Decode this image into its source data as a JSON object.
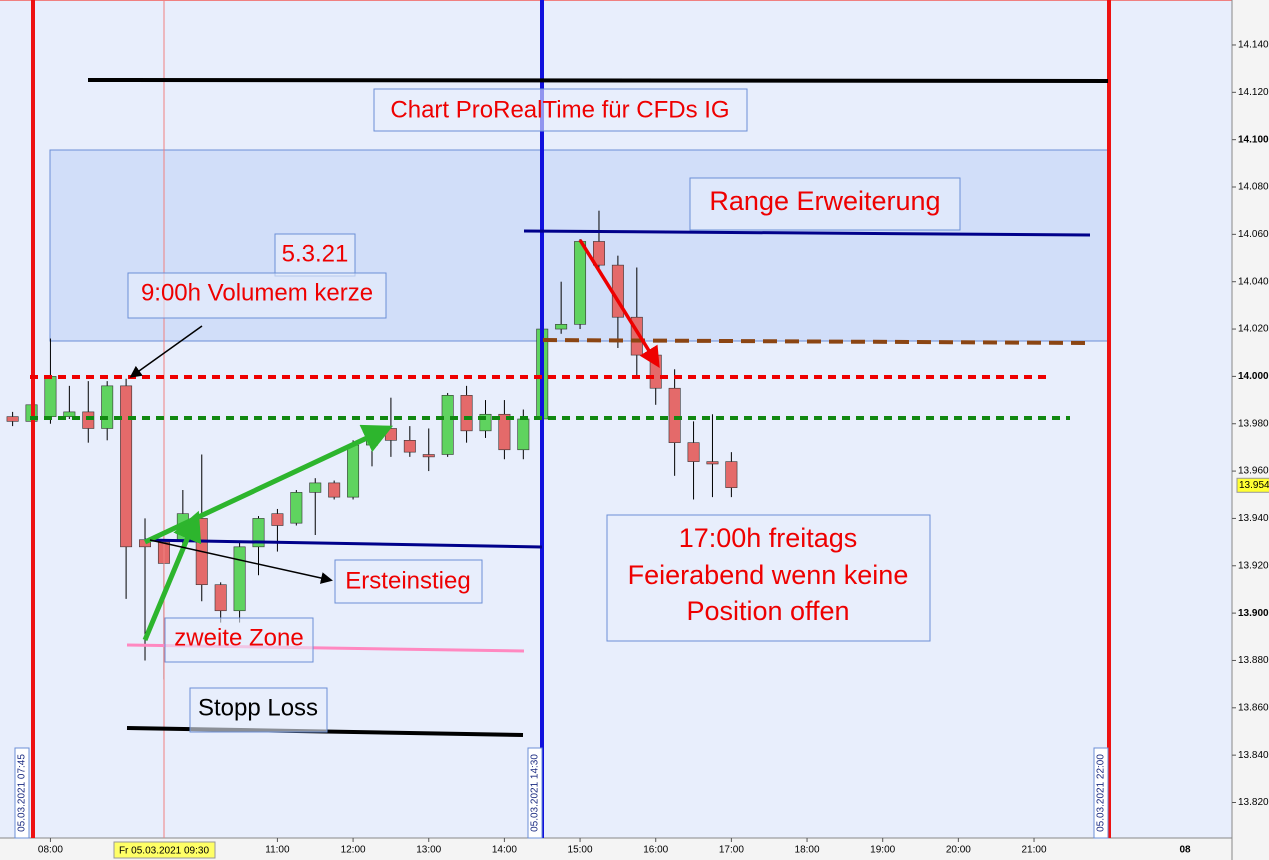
{
  "chart_data": {
    "type": "candlestick",
    "x": [
      "07:30",
      "07:45",
      "08:00",
      "08:15",
      "08:30",
      "08:45",
      "09:00",
      "09:15",
      "09:30",
      "09:45",
      "10:00",
      "10:15",
      "10:30",
      "10:45",
      "11:00",
      "11:15",
      "11:30",
      "11:45",
      "12:00",
      "12:15",
      "12:30",
      "12:45",
      "13:00",
      "13:15",
      "13:30",
      "13:45",
      "14:00",
      "14:15",
      "14:30",
      "14:45",
      "15:00",
      "15:15",
      "15:30",
      "15:45",
      "16:00",
      "16:15",
      "16:30",
      "16:45",
      "17:00"
    ],
    "open": [
      13.983,
      13.981,
      13.983,
      13.983,
      13.985,
      13.978,
      13.996,
      13.931,
      13.93,
      13.931,
      13.94,
      13.912,
      13.901,
      13.928,
      13.942,
      13.938,
      13.951,
      13.955,
      13.949,
      13.971,
      13.978,
      13.973,
      13.967,
      13.967,
      13.992,
      13.977,
      13.984,
      13.969,
      13.982,
      14.02,
      14.022,
      14.057,
      14.047,
      14.025,
      14.009,
      13.995,
      13.972,
      13.964,
      13.964
    ],
    "high": [
      13.985,
      14.0,
      14.016,
      13.996,
      13.998,
      13.998,
      13.999,
      13.94,
      13.933,
      13.952,
      13.967,
      13.913,
      13.93,
      13.941,
      13.944,
      13.952,
      13.957,
      13.956,
      13.973,
      13.976,
      13.991,
      13.979,
      13.978,
      13.993,
      13.996,
      13.99,
      13.99,
      13.986,
      14.022,
      14.04,
      14.058,
      14.07,
      14.051,
      14.046,
      14.012,
      14.003,
      13.981,
      13.984,
      13.968
    ],
    "low": [
      13.979,
      13.98,
      13.98,
      13.982,
      13.972,
      13.973,
      13.906,
      13.88,
      13.872,
      13.925,
      13.905,
      13.896,
      13.896,
      13.916,
      13.926,
      13.937,
      13.933,
      13.948,
      13.948,
      13.962,
      13.966,
      13.966,
      13.96,
      13.966,
      13.972,
      13.974,
      13.965,
      13.965,
      13.98,
      14.018,
      14.02,
      14.044,
      14.012,
      14.0,
      13.988,
      13.958,
      13.948,
      13.949,
      13.949
    ],
    "close": [
      13.981,
      13.988,
      14.0,
      13.985,
      13.978,
      13.996,
      13.928,
      13.928,
      13.921,
      13.942,
      13.912,
      13.901,
      13.928,
      13.94,
      13.937,
      13.951,
      13.955,
      13.949,
      13.971,
      13.973,
      13.973,
      13.968,
      13.966,
      13.992,
      13.977,
      13.984,
      13.969,
      13.982,
      14.02,
      14.022,
      14.057,
      14.047,
      14.025,
      14.009,
      13.995,
      13.972,
      13.964,
      13.963,
      13.953
    ],
    "up_color": "#5fd35f",
    "down_color": "#e46a6a",
    "xlim": [
      "07:20",
      "23:37"
    ],
    "ylim": [
      13.805,
      14.159
    ],
    "yticks": [
      {
        "value": 13.82,
        "label": "13.820"
      },
      {
        "value": 13.84,
        "label": "13.840"
      },
      {
        "value": 13.86,
        "label": "13.860"
      },
      {
        "value": 13.88,
        "label": "13.880"
      },
      {
        "value": 13.9,
        "label": "13.900",
        "bold": true
      },
      {
        "value": 13.92,
        "label": "13.920"
      },
      {
        "value": 13.94,
        "label": "13.940"
      },
      {
        "value": 13.96,
        "label": "13.960"
      },
      {
        "value": 13.98,
        "label": "13.980"
      },
      {
        "value": 14.0,
        "label": "14.000",
        "bold": true
      },
      {
        "value": 14.02,
        "label": "14.020"
      },
      {
        "value": 14.04,
        "label": "14.040"
      },
      {
        "value": 14.06,
        "label": "14.060"
      },
      {
        "value": 14.08,
        "label": "14.080"
      },
      {
        "value": 14.1,
        "label": "14.100",
        "bold": true
      },
      {
        "value": 14.12,
        "label": "14.120"
      },
      {
        "value": 14.14,
        "label": "14.140"
      }
    ],
    "xticks": [
      "08:00",
      "11:00",
      "12:00",
      "13:00",
      "14:00",
      "15:00",
      "16:00",
      "17:00",
      "18:00",
      "19:00",
      "20:00",
      "21:00"
    ],
    "next_day_label": "08",
    "last_price": {
      "value": 13.954,
      "label": "13.954"
    },
    "cursor_label": "Fr 05.03.2021 09:30",
    "vline_labels": [
      "05.03.2021 07:45",
      "05.03.2021 14:30",
      "05.03.2021 22:00"
    ],
    "annotations": {
      "title": "Chart ProRealTime für CFDs IG",
      "range": "Range Erweiterung",
      "date": "5.3.21",
      "volume": "9:00h Volumem kerze",
      "entry": "Ersteinstieg",
      "zone": "zweite Zone",
      "stop": "Stopp Loss",
      "note": [
        "17:00h freitags",
        "Feierabend wenn keine",
        "Position offen"
      ]
    }
  }
}
